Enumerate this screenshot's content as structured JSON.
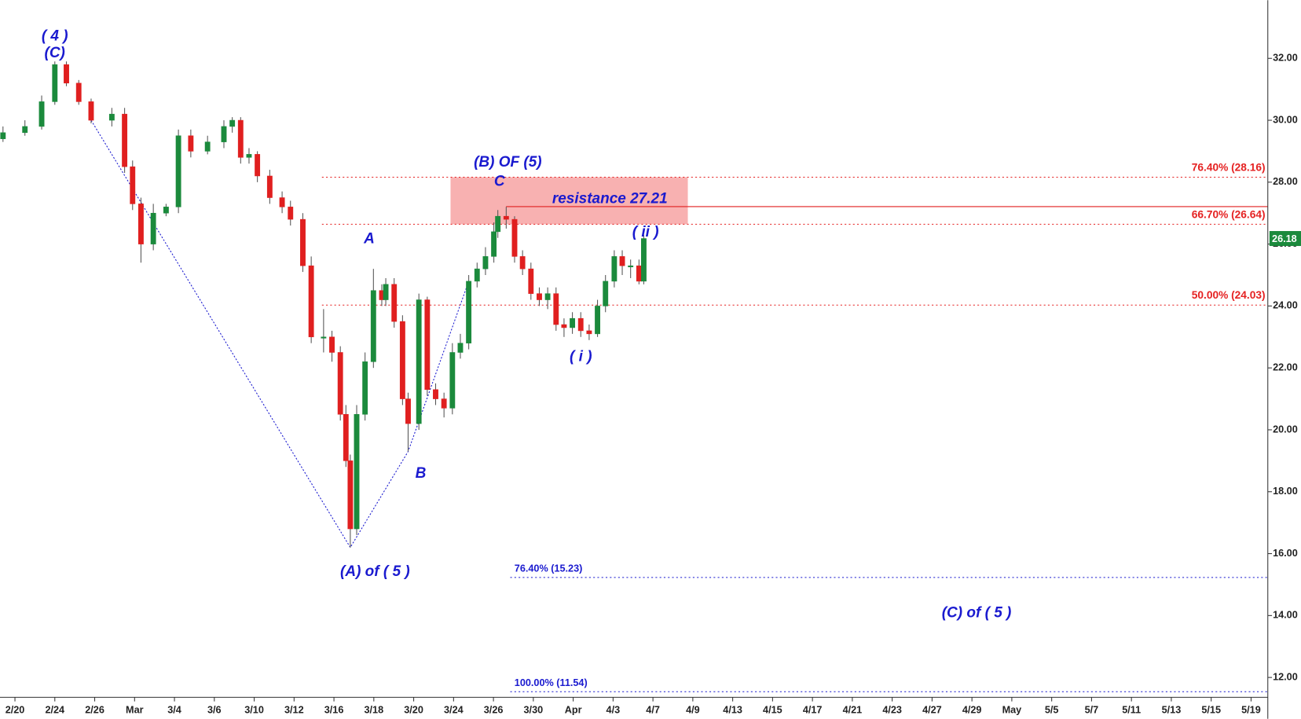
{
  "chart_data": {
    "type": "candlestick",
    "categories": [
      "2/20",
      "2/24",
      "2/26",
      "Mar",
      "3/4",
      "3/6",
      "3/10",
      "3/12",
      "3/16",
      "3/18",
      "3/20",
      "3/24",
      "3/26",
      "3/30",
      "Apr",
      "4/3",
      "4/7",
      "4/9",
      "4/13",
      "4/15",
      "4/17",
      "4/21",
      "4/23",
      "4/27",
      "4/29",
      "May",
      "5/5",
      "5/7",
      "5/11",
      "5/13",
      "5/15",
      "5/19"
    ],
    "xlim": [
      -0.375,
      31.42
    ],
    "ylim": [
      11.36,
      33.88
    ],
    "yticks": [
      {
        "value": 12,
        "label": "12.00"
      },
      {
        "value": 14,
        "label": "14.00"
      },
      {
        "value": 16,
        "label": "16.00"
      },
      {
        "value": 18,
        "label": "18.00"
      },
      {
        "value": 20,
        "label": "20.00"
      },
      {
        "value": 22,
        "label": "22.00"
      },
      {
        "value": 24,
        "label": "24.00"
      },
      {
        "value": 26,
        "label": "26.00"
      },
      {
        "value": 28,
        "label": "28.00"
      },
      {
        "value": 30,
        "label": "30.00"
      },
      {
        "value": 32,
        "label": "32.00"
      }
    ],
    "up_color": "#1b8a3c",
    "down_color": "#e01f1f",
    "x": [
      -0.3,
      0.25,
      0.67,
      1.0,
      1.29,
      1.6,
      1.91,
      2.43,
      2.75,
      2.95,
      3.16,
      3.47,
      3.79,
      4.1,
      4.41,
      4.83,
      5.24,
      5.45,
      5.66,
      5.87,
      6.08,
      6.39,
      6.7,
      6.91,
      7.22,
      7.43,
      7.74,
      7.95,
      8.16,
      8.3,
      8.41,
      8.57,
      8.78,
      8.99,
      9.2,
      9.3,
      9.51,
      9.72,
      9.86,
      10.13,
      10.34,
      10.55,
      10.76,
      10.97,
      11.17,
      11.38,
      11.59,
      11.8,
      12.01,
      12.11,
      12.32,
      12.53,
      12.73,
      12.94,
      13.15,
      13.36,
      13.57,
      13.77,
      13.98,
      14.19,
      14.4,
      14.61,
      14.81,
      15.03,
      15.23,
      15.44,
      15.65,
      15.77
    ],
    "open": [
      29.4,
      29.6,
      29.8,
      30.6,
      31.8,
      31.2,
      30.6,
      30.0,
      30.2,
      28.5,
      27.3,
      26.0,
      27.0,
      27.2,
      29.5,
      29.0,
      29.3,
      29.8,
      30.0,
      28.8,
      28.9,
      28.2,
      27.5,
      27.2,
      26.8,
      25.3,
      23.0,
      23.0,
      22.5,
      20.5,
      19.0,
      16.8,
      20.5,
      22.2,
      24.5,
      24.2,
      24.7,
      23.5,
      21.0,
      20.2,
      24.2,
      21.3,
      21.0,
      20.7,
      22.5,
      22.8,
      24.8,
      25.2,
      25.6,
      26.4,
      26.9,
      26.8,
      25.6,
      25.2,
      24.4,
      24.2,
      24.4,
      23.4,
      23.3,
      23.6,
      23.2,
      23.1,
      24.0,
      24.8,
      25.6,
      25.3,
      25.3,
      24.8
    ],
    "high": [
      29.8,
      30.0,
      30.8,
      31.9,
      31.9,
      31.3,
      30.7,
      30.4,
      30.4,
      28.7,
      27.5,
      27.3,
      27.3,
      29.7,
      29.7,
      29.5,
      30.0,
      30.1,
      30.1,
      29.1,
      29.0,
      28.4,
      27.7,
      27.4,
      27.0,
      25.6,
      23.9,
      23.2,
      22.7,
      20.8,
      19.2,
      20.8,
      22.5,
      25.2,
      24.7,
      24.9,
      24.9,
      23.7,
      21.2,
      24.4,
      24.3,
      21.5,
      21.2,
      22.8,
      23.1,
      25.0,
      25.4,
      25.9,
      26.7,
      27.1,
      27.2,
      26.9,
      25.8,
      25.4,
      24.6,
      24.6,
      24.6,
      23.6,
      23.8,
      23.8,
      23.4,
      24.2,
      25.0,
      25.8,
      25.8,
      25.5,
      25.5,
      26.3
    ],
    "low": [
      29.3,
      29.5,
      29.7,
      30.5,
      31.1,
      30.5,
      29.9,
      29.8,
      28.3,
      27.1,
      25.4,
      25.8,
      26.9,
      27.0,
      28.8,
      28.9,
      29.1,
      29.6,
      28.6,
      28.6,
      28.0,
      27.3,
      27.0,
      26.6,
      25.1,
      22.8,
      22.5,
      22.2,
      20.3,
      18.8,
      16.2,
      16.6,
      20.3,
      22.0,
      24.0,
      24.0,
      23.3,
      20.8,
      19.3,
      20.0,
      21.1,
      20.8,
      20.4,
      20.5,
      22.3,
      22.6,
      24.6,
      25.0,
      25.4,
      26.2,
      26.5,
      25.4,
      25.0,
      24.2,
      24.0,
      23.9,
      23.2,
      23.0,
      23.1,
      23.0,
      22.9,
      23.0,
      23.8,
      24.6,
      25.0,
      24.9,
      24.7,
      24.7
    ],
    "close": [
      29.6,
      29.8,
      30.6,
      31.8,
      31.2,
      30.6,
      30.0,
      30.2,
      28.5,
      27.3,
      26.0,
      27.0,
      27.2,
      29.5,
      29.0,
      29.3,
      29.8,
      30.0,
      28.8,
      28.9,
      28.2,
      27.5,
      27.2,
      26.8,
      25.3,
      23.0,
      23.0,
      22.5,
      20.5,
      19.0,
      16.8,
      20.5,
      22.2,
      24.5,
      24.2,
      24.7,
      23.5,
      21.0,
      20.2,
      24.2,
      21.3,
      21.0,
      20.7,
      22.5,
      22.8,
      24.8,
      25.2,
      25.6,
      26.4,
      26.9,
      26.8,
      25.6,
      25.2,
      24.4,
      24.2,
      24.4,
      23.4,
      23.3,
      23.6,
      23.2,
      23.1,
      24.0,
      24.8,
      25.6,
      25.3,
      25.3,
      24.8,
      26.18
    ],
    "last_price": 26.18,
    "levels": [
      {
        "label": "76.40% (28.16)",
        "value": 28.16,
        "color": "#e52222"
      },
      {
        "label": "66.70% (26.64)",
        "value": 26.64,
        "color": "#e52222"
      },
      {
        "label": "50.00% (24.03)",
        "value": 24.03,
        "color": "#e52222"
      },
      {
        "label": "76.40% (15.23)",
        "value": 15.23,
        "color": "#1a1acf"
      },
      {
        "label": "100.00% (11.54)",
        "value": 11.54,
        "color": "#1a1acf"
      }
    ],
    "resistance": {
      "label": "resistance 27.21",
      "value": 27.21
    },
    "annotations": [
      "( 4 )",
      "(C)",
      "(B) OF (5)",
      "C",
      "A",
      "( ii )",
      "( i )",
      "B",
      "(A) of ( 5 )",
      "(C) of ( 5 )"
    ]
  }
}
